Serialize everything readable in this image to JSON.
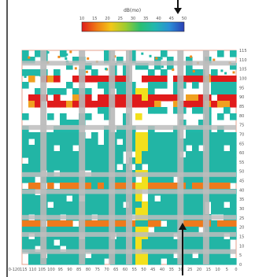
{
  "chart_data": {
    "type": "heatmap",
    "title": "",
    "xlabel": "",
    "ylabel": "",
    "colorbar": {
      "label": "dB(mo)",
      "ticks": [
        "10",
        "15",
        "20",
        "25",
        "30",
        "35",
        "40",
        "45",
        "50"
      ],
      "colors": [
        "#e01b1b",
        "#f07a14",
        "#f2c818",
        "#9ccc30",
        "#2bbf72",
        "#20b8b0",
        "#2a8fd6",
        "#2a3fb6"
      ]
    },
    "x_ticks": [
      "0-120",
      "115",
      "110",
      "105",
      "100",
      "95",
      "90",
      "85",
      "80",
      "75",
      "70",
      "65",
      "60",
      "55",
      "50",
      "45",
      "40",
      "35",
      "30",
      "25",
      "20",
      "15",
      "10",
      "5",
      "0"
    ],
    "y_ticks": [
      "115",
      "110",
      "105",
      "100",
      "95",
      "90",
      "85",
      "80",
      "75",
      "70",
      "65",
      "60",
      "55",
      "50",
      "45",
      "40",
      "35",
      "30",
      "25",
      "20",
      "15",
      "10",
      "5",
      "0"
    ],
    "bands": [
      {
        "row_from": 0.0,
        "row_to": 0.12,
        "level": "sparse",
        "color": "#20b8a8"
      },
      {
        "row_from": 0.12,
        "row_to": 0.16,
        "level": "high",
        "color": "#e01b1b"
      },
      {
        "row_from": 0.16,
        "row_to": 0.22,
        "level": "mid",
        "color": "#20b8a8"
      },
      {
        "row_from": 0.22,
        "row_to": 0.26,
        "level": "high",
        "color": "#e01b1b"
      },
      {
        "row_from": 0.26,
        "row_to": 0.38,
        "level": "sparse",
        "color": "#20b8a8"
      },
      {
        "row_from": 0.38,
        "row_to": 0.62,
        "level": "dense",
        "color": "#22b5a5"
      },
      {
        "row_from": 0.62,
        "row_to": 1.0,
        "level": "dense",
        "color": "#22b5a5"
      }
    ],
    "orange_rows": [
      0.62,
      0.82
    ],
    "yellow_col": 0.56,
    "gray_cols": [
      0.1,
      0.28,
      0.42,
      0.5,
      0.74,
      0.86
    ],
    "gray_rows": [
      0.06,
      0.36,
      0.58,
      0.66,
      0.78,
      0.86,
      0.94
    ],
    "arrows": [
      "top-right",
      "bottom-right"
    ]
  }
}
